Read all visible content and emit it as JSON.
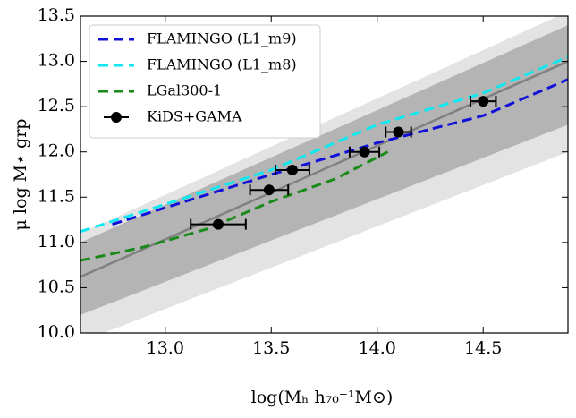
{
  "chart_data": {
    "type": "line",
    "xlabel": "log(Mₕ h₇₀⁻¹M⊙)",
    "ylabel": "μ log M⋆ grp",
    "xlim": [
      12.6,
      14.9
    ],
    "ylim": [
      10.0,
      13.5
    ],
    "xticks": [
      {
        "value": 13.0,
        "label": "13.0"
      },
      {
        "value": 13.5,
        "label": "13.5"
      },
      {
        "value": 14.0,
        "label": "14.0"
      },
      {
        "value": 14.5,
        "label": "14.5"
      }
    ],
    "yticks": [
      {
        "value": 10.0,
        "label": "10.0"
      },
      {
        "value": 10.5,
        "label": "10.5"
      },
      {
        "value": 11.0,
        "label": "11.0"
      },
      {
        "value": 11.5,
        "label": "11.5"
      },
      {
        "value": 12.0,
        "label": "12.0"
      },
      {
        "value": 12.5,
        "label": "12.5"
      },
      {
        "value": 13.0,
        "label": "13.0"
      },
      {
        "value": 13.5,
        "label": "13.5"
      }
    ],
    "bands": [
      {
        "color": "#e3e3e3",
        "x": [
          12.6,
          14.9
        ],
        "lower": [
          9.9,
          12.0
        ],
        "upper": [
          11.1,
          13.55
        ]
      },
      {
        "color": "#b4b4b4",
        "x": [
          12.6,
          14.9
        ],
        "lower": [
          10.2,
          12.3
        ],
        "upper": [
          11.0,
          13.4
        ]
      }
    ],
    "fit": {
      "color": "#808080",
      "x": [
        12.6,
        14.9
      ],
      "values": [
        10.62,
        13.0
      ]
    },
    "series": [
      {
        "name": "FLAMINGO (L1_m9)",
        "color": "#1010d8",
        "x": [
          12.75,
          13.5,
          14.0,
          14.5,
          14.9
        ],
        "values": [
          11.2,
          11.75,
          12.1,
          12.4,
          12.8
        ]
      },
      {
        "name": "FLAMINGO (L1_m8)",
        "color": "#10e8f0",
        "x": [
          12.6,
          13.5,
          14.0,
          14.5,
          14.9
        ],
        "values": [
          11.12,
          11.8,
          12.3,
          12.65,
          13.05
        ]
      },
      {
        "name": "LGal300-1",
        "color": "#1a8a1a",
        "x": [
          12.6,
          12.9,
          13.2,
          13.5,
          13.8,
          14.05
        ],
        "values": [
          10.8,
          10.95,
          11.15,
          11.45,
          11.7,
          12.0
        ]
      },
      {
        "name": "KiDS+GAMA",
        "color": "#000000",
        "kind": "errorbar",
        "x": [
          13.25,
          13.49,
          13.6,
          13.94,
          14.1,
          14.5
        ],
        "values": [
          11.2,
          11.58,
          11.8,
          12.0,
          12.22,
          12.56
        ],
        "xerr": [
          0.13,
          0.09,
          0.08,
          0.07,
          0.06,
          0.06
        ]
      }
    ]
  }
}
